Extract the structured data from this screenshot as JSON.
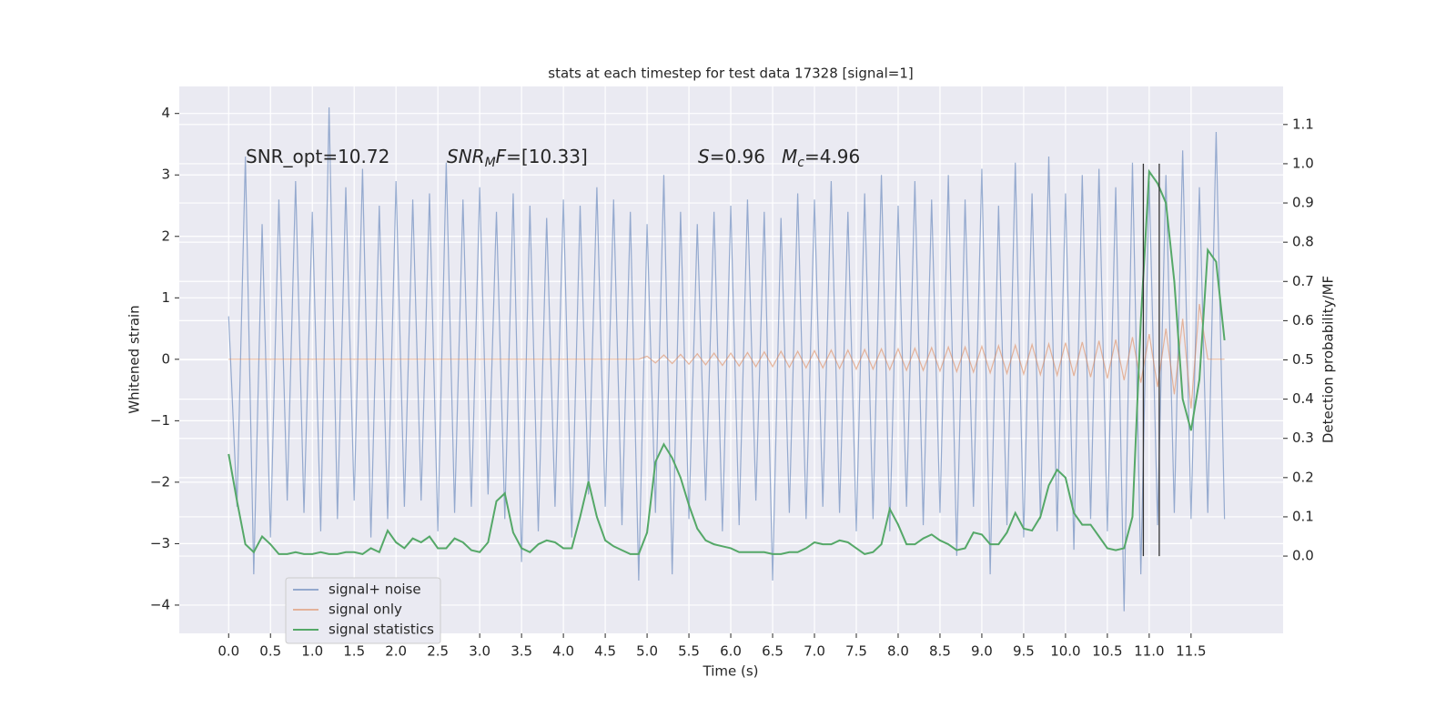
{
  "chart_data": {
    "type": "line",
    "title": "stats at each timestep for test data 17328 [signal=1]",
    "xlabel": "Time (s)",
    "ylabel": "Whitened strain",
    "y2label": "Detection probability/MF",
    "annotations": [
      [
        {
          "text": "SNR_opt=10.72"
        }
      ],
      [
        {
          "text": "SNR",
          "italic": true
        },
        {
          "text": "M",
          "italic": true,
          "sub": true
        },
        {
          "text": "F",
          "italic": true
        },
        {
          "text": "=[10.33]"
        }
      ],
      [
        {
          "text": "S",
          "italic": true
        },
        {
          "text": "=0.96"
        }
      ],
      [
        {
          "text": "M",
          "italic": true
        },
        {
          "text": "c",
          "italic": true,
          "sub": true
        },
        {
          "text": "=4.96"
        }
      ]
    ],
    "x": [
      0.0,
      0.1,
      0.2,
      0.3,
      0.4,
      0.5,
      0.6,
      0.7,
      0.8,
      0.9,
      1.0,
      1.1,
      1.2,
      1.3,
      1.4,
      1.5,
      1.6,
      1.7,
      1.8,
      1.9,
      2.0,
      2.1,
      2.2,
      2.3,
      2.4,
      2.5,
      2.6,
      2.7,
      2.8,
      2.9,
      3.0,
      3.1,
      3.2,
      3.3,
      3.4,
      3.5,
      3.6,
      3.7,
      3.8,
      3.9,
      4.0,
      4.1,
      4.2,
      4.3,
      4.4,
      4.5,
      4.6,
      4.7,
      4.8,
      4.9,
      5.0,
      5.1,
      5.2,
      5.3,
      5.4,
      5.5,
      5.6,
      5.7,
      5.8,
      5.9,
      6.0,
      6.1,
      6.2,
      6.3,
      6.4,
      6.5,
      6.6,
      6.7,
      6.8,
      6.9,
      7.0,
      7.1,
      7.2,
      7.3,
      7.4,
      7.5,
      7.6,
      7.7,
      7.8,
      7.9,
      8.0,
      8.1,
      8.2,
      8.3,
      8.4,
      8.5,
      8.6,
      8.7,
      8.8,
      8.9,
      9.0,
      9.1,
      9.2,
      9.3,
      9.4,
      9.5,
      9.6,
      9.7,
      9.8,
      9.9,
      10.0,
      10.1,
      10.2,
      10.3,
      10.4,
      10.5,
      10.6,
      10.7,
      10.8,
      10.9,
      11.0,
      11.1,
      11.2,
      11.3,
      11.4,
      11.5,
      11.6,
      11.7,
      11.8,
      11.9
    ],
    "series": [
      {
        "name": "signal+ noise",
        "color": "#4c72b0",
        "opacity": 0.55,
        "values": [
          0.7,
          -2.4,
          3.3,
          -3.5,
          2.2,
          -2.9,
          2.6,
          -2.3,
          2.9,
          -2.5,
          2.4,
          -2.8,
          4.1,
          -2.6,
          2.8,
          -2.3,
          3.1,
          -2.9,
          2.5,
          -2.6,
          2.9,
          -2.4,
          2.6,
          -2.3,
          2.7,
          -2.8,
          3.2,
          -2.5,
          2.6,
          -2.4,
          2.8,
          -2.2,
          2.4,
          -2.6,
          2.7,
          -3.3,
          2.5,
          -2.8,
          2.3,
          -2.4,
          2.6,
          -2.9,
          2.5,
          -2.2,
          2.8,
          -2.4,
          2.6,
          -2.7,
          2.4,
          -3.6,
          2.2,
          -2.5,
          3.0,
          -3.5,
          2.4,
          -2.6,
          2.2,
          -2.3,
          2.4,
          -2.8,
          2.5,
          -2.7,
          2.6,
          -2.3,
          2.4,
          -3.6,
          2.3,
          -2.5,
          2.7,
          -2.6,
          2.6,
          -2.4,
          2.9,
          -2.5,
          2.4,
          -2.8,
          2.7,
          -2.6,
          3.0,
          -2.8,
          2.5,
          -2.4,
          2.9,
          -2.7,
          2.6,
          -2.5,
          3.0,
          -3.2,
          2.6,
          -2.4,
          3.1,
          -3.5,
          2.5,
          -2.7,
          3.2,
          -2.9,
          2.7,
          -2.6,
          3.3,
          -2.8,
          2.7,
          -3.1,
          3.0,
          -2.6,
          3.1,
          -2.8,
          2.8,
          -4.1,
          3.2,
          -3.5,
          2.9,
          -2.7,
          3.0,
          -2.5,
          3.4,
          -2.6,
          2.8,
          -2.5,
          3.7,
          -2.6
        ]
      },
      {
        "name": "signal only",
        "color": "#dd8452",
        "opacity": 0.55,
        "values": [
          0,
          0,
          0,
          0,
          0,
          0,
          0,
          0,
          0,
          0,
          0,
          0,
          0,
          0,
          0,
          0,
          0,
          0,
          0,
          0,
          0,
          0,
          0,
          0,
          0,
          0,
          0,
          0,
          0,
          0,
          0,
          0,
          0,
          0,
          0,
          0,
          0,
          0,
          0,
          0,
          0,
          0,
          0,
          0,
          0,
          0,
          0,
          0,
          0,
          0,
          0.05,
          -0.06,
          0.07,
          -0.07,
          0.08,
          -0.08,
          0.09,
          -0.09,
          0.1,
          -0.1,
          0.1,
          -0.11,
          0.11,
          -0.12,
          0.12,
          -0.12,
          0.13,
          -0.13,
          0.13,
          -0.14,
          0.14,
          -0.14,
          0.15,
          -0.15,
          0.15,
          -0.16,
          0.16,
          -0.16,
          0.17,
          -0.17,
          0.17,
          -0.18,
          0.18,
          -0.18,
          0.19,
          -0.19,
          0.2,
          -0.2,
          0.2,
          -0.21,
          0.21,
          -0.22,
          0.22,
          -0.23,
          0.23,
          -0.24,
          0.24,
          -0.25,
          0.25,
          -0.26,
          0.27,
          -0.27,
          0.28,
          -0.29,
          0.3,
          -0.31,
          0.32,
          -0.34,
          0.36,
          -0.38,
          0.41,
          -0.45,
          0.5,
          -0.57,
          0.66,
          -0.8,
          0.9,
          0,
          0,
          0
        ]
      },
      {
        "name": "signal statistics",
        "color": "#55a868",
        "opacity": 1,
        "axis": "y2",
        "values": [
          0.26,
          0.14,
          0.03,
          0.01,
          0.05,
          0.03,
          0.005,
          0.005,
          0.01,
          0.005,
          0.005,
          0.01,
          0.005,
          0.005,
          0.01,
          0.01,
          0.005,
          0.02,
          0.01,
          0.065,
          0.035,
          0.02,
          0.045,
          0.035,
          0.05,
          0.02,
          0.02,
          0.045,
          0.035,
          0.015,
          0.01,
          0.035,
          0.14,
          0.16,
          0.06,
          0.02,
          0.01,
          0.03,
          0.04,
          0.035,
          0.02,
          0.02,
          0.1,
          0.19,
          0.1,
          0.04,
          0.025,
          0.015,
          0.005,
          0.005,
          0.06,
          0.24,
          0.285,
          0.25,
          0.2,
          0.13,
          0.07,
          0.04,
          0.03,
          0.025,
          0.02,
          0.01,
          0.01,
          0.01,
          0.01,
          0.005,
          0.005,
          0.01,
          0.01,
          0.02,
          0.035,
          0.03,
          0.03,
          0.04,
          0.035,
          0.02,
          0.005,
          0.01,
          0.03,
          0.12,
          0.08,
          0.03,
          0.03,
          0.045,
          0.055,
          0.04,
          0.03,
          0.015,
          0.02,
          0.06,
          0.055,
          0.03,
          0.03,
          0.06,
          0.11,
          0.07,
          0.065,
          0.1,
          0.18,
          0.22,
          0.2,
          0.11,
          0.08,
          0.08,
          0.05,
          0.02,
          0.015,
          0.02,
          0.1,
          0.6,
          0.98,
          0.95,
          0.9,
          0.7,
          0.4,
          0.32,
          0.45,
          0.78,
          0.75,
          0.55
        ]
      }
    ],
    "vlines": {
      "x": [
        10.93,
        11.12
      ],
      "ymin": 0,
      "ymax": 1,
      "color": "#333333"
    },
    "xlim": [
      -0.59,
      12.6
    ],
    "xticks": [
      {
        "value": 0,
        "label": "0.0"
      },
      {
        "value": 0.5,
        "label": "0.5"
      },
      {
        "value": 1,
        "label": "1.0"
      },
      {
        "value": 1.5,
        "label": "1.5"
      },
      {
        "value": 2,
        "label": "2.0"
      },
      {
        "value": 2.5,
        "label": "2.5"
      },
      {
        "value": 3,
        "label": "3.0"
      },
      {
        "value": 3.5,
        "label": "3.5"
      },
      {
        "value": 4,
        "label": "4.0"
      },
      {
        "value": 4.5,
        "label": "4.5"
      },
      {
        "value": 5,
        "label": "5.0"
      },
      {
        "value": 5.5,
        "label": "5.5"
      },
      {
        "value": 6,
        "label": "6.0"
      },
      {
        "value": 6.5,
        "label": "6.5"
      },
      {
        "value": 7,
        "label": "7.0"
      },
      {
        "value": 7.5,
        "label": "7.5"
      },
      {
        "value": 8,
        "label": "8.0"
      },
      {
        "value": 8.5,
        "label": "8.5"
      },
      {
        "value": 9,
        "label": "9.0"
      },
      {
        "value": 9.5,
        "label": "9.5"
      },
      {
        "value": 10,
        "label": "10.0"
      },
      {
        "value": 10.5,
        "label": "10.5"
      },
      {
        "value": 11,
        "label": "11.0"
      },
      {
        "value": 11.5,
        "label": "11.5"
      }
    ],
    "ylim": [
      -4.46,
      4.44
    ],
    "yticks": [
      {
        "value": -4,
        "label": "−4"
      },
      {
        "value": -3,
        "label": "−3"
      },
      {
        "value": -2,
        "label": "−2"
      },
      {
        "value": -1,
        "label": "−1"
      },
      0,
      1,
      2,
      3,
      4
    ],
    "y2lim": [
      -0.197,
      1.197
    ],
    "y2ticks": [
      {
        "value": 0,
        "label": "0.0"
      },
      {
        "value": 0.1,
        "label": "0.1"
      },
      {
        "value": 0.2,
        "label": "0.2"
      },
      {
        "value": 0.3,
        "label": "0.3"
      },
      {
        "value": 0.4,
        "label": "0.4"
      },
      {
        "value": 0.5,
        "label": "0.5"
      },
      {
        "value": 0.6,
        "label": "0.6"
      },
      {
        "value": 0.7,
        "label": "0.7"
      },
      {
        "value": 0.8,
        "label": "0.8"
      },
      {
        "value": 0.9,
        "label": "0.9"
      },
      {
        "value": 1,
        "label": "1.0"
      },
      {
        "value": 1.1,
        "label": "1.1"
      }
    ],
    "grid": true,
    "legend": "lower left",
    "background": "#eaeaf2"
  }
}
